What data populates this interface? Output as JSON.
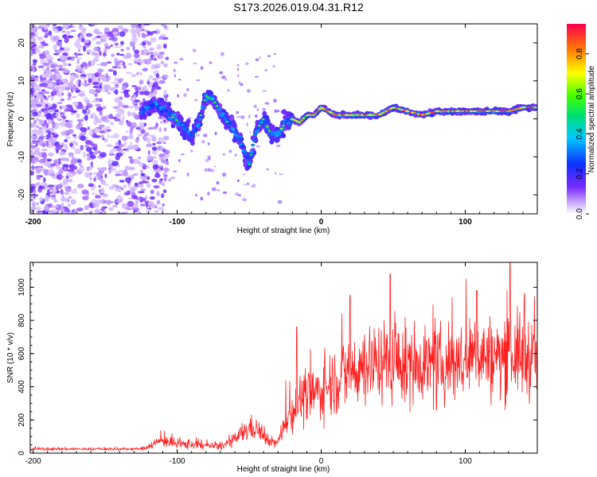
{
  "title": "S173.2026.019.04.31.R12",
  "colors": {
    "snr_line": "#ff2020",
    "spectro_purple": "#7a2cff",
    "spectro_light": "#c9a8ff",
    "ridge_blue": "#1030ff",
    "ridge_core": "#ff3b1f"
  },
  "chart_data": [
    {
      "type": "heatmap",
      "name": "spectrogram",
      "xlabel": "Height of straight line (km)",
      "ylabel": "Frequency (Hz)",
      "xlim": [
        -202,
        150
      ],
      "ylim": [
        -25,
        25
      ],
      "xticks": [
        -200,
        -100,
        0,
        100
      ],
      "xtick_labels": [
        "-200",
        "-100",
        "0",
        "100"
      ],
      "yticks": [
        20,
        10,
        0,
        -10,
        -20
      ],
      "ytick_labels": [
        "20",
        "10",
        "0",
        "-10",
        "-20"
      ],
      "colorbar": {
        "label": "Normalized spectral amplitude",
        "range": [
          0,
          0.95
        ],
        "ticks": [
          0.0,
          0.2,
          0.4,
          0.6,
          0.8
        ],
        "tick_labels": [
          "0.0",
          "0.2",
          "0.4",
          "0.6",
          "0.8"
        ]
      },
      "ridge": {
        "x": [
          -125,
          -115,
          -105,
          -95,
          -90,
          -85,
          -80,
          -75,
          -70,
          -65,
          -60,
          -55,
          -50,
          -45,
          -40,
          -35,
          -30,
          -25,
          -20,
          -15,
          -10,
          -5,
          0,
          10,
          20,
          30,
          40,
          50,
          60,
          70,
          80,
          90,
          100,
          110,
          120,
          130,
          140,
          150
        ],
        "y": [
          2,
          4,
          1,
          -2,
          -5,
          -1,
          6,
          5,
          2,
          -1,
          -3,
          -7,
          -12,
          -3,
          0,
          -4,
          -4,
          -1,
          0,
          -1,
          1,
          1,
          3,
          1,
          1,
          1,
          1,
          3,
          2,
          1,
          2,
          2,
          2,
          2,
          2,
          2,
          3,
          3
        ],
        "amplitude": [
          0.5,
          0.55,
          0.6,
          0.65,
          0.6,
          0.55,
          0.6,
          0.6,
          0.6,
          0.65,
          0.65,
          0.6,
          0.55,
          0.55,
          0.6,
          0.7,
          0.7,
          0.75,
          0.8,
          0.8,
          0.8,
          0.8,
          0.85,
          0.85,
          0.85,
          0.85,
          0.85,
          0.85,
          0.9,
          0.9,
          0.9,
          0.9,
          0.9,
          0.9,
          0.9,
          0.9,
          0.9,
          0.9
        ]
      }
    },
    {
      "type": "line",
      "name": "snr",
      "xlabel": "Height of straight line (km)",
      "ylabel": "SNR (10 * v/v)",
      "xlim": [
        -202,
        150
      ],
      "ylim": [
        0,
        1150
      ],
      "xticks": [
        -200,
        -100,
        0,
        100
      ],
      "xtick_labels": [
        "-200",
        "-100",
        "0",
        "100"
      ],
      "yticks": [
        0,
        200,
        400,
        600,
        800,
        1000
      ],
      "ytick_labels": [
        "0",
        "200",
        "400",
        "600",
        "800",
        "1000"
      ],
      "envelope": {
        "x": [
          -202,
          -180,
          -160,
          -140,
          -125,
          -115,
          -110,
          -100,
          -90,
          -80,
          -70,
          -60,
          -55,
          -50,
          -45,
          -40,
          -35,
          -30,
          -25,
          -20,
          -15,
          -10,
          0,
          10,
          20,
          30,
          40,
          50,
          60,
          70,
          80,
          90,
          100,
          110,
          120,
          130,
          140,
          150
        ],
        "mean": [
          25,
          25,
          25,
          25,
          25,
          60,
          80,
          50,
          55,
          45,
          40,
          80,
          120,
          150,
          150,
          100,
          70,
          60,
          200,
          250,
          320,
          330,
          380,
          450,
          480,
          530,
          550,
          560,
          520,
          560,
          500,
          560,
          540,
          600,
          560,
          600,
          580,
          580
        ],
        "spread": [
          10,
          10,
          10,
          10,
          10,
          40,
          50,
          40,
          40,
          30,
          30,
          50,
          80,
          90,
          90,
          60,
          40,
          40,
          120,
          150,
          200,
          200,
          220,
          260,
          300,
          300,
          300,
          320,
          300,
          300,
          300,
          300,
          300,
          300,
          320,
          320,
          320,
          300
        ]
      },
      "peaks": [
        {
          "x": -17,
          "y": 760
        },
        {
          "x": 20,
          "y": 950
        },
        {
          "x": 48,
          "y": 1080
        },
        {
          "x": 108,
          "y": 980
        },
        {
          "x": 131,
          "y": 1150
        },
        {
          "x": 141,
          "y": 960
        }
      ]
    }
  ]
}
